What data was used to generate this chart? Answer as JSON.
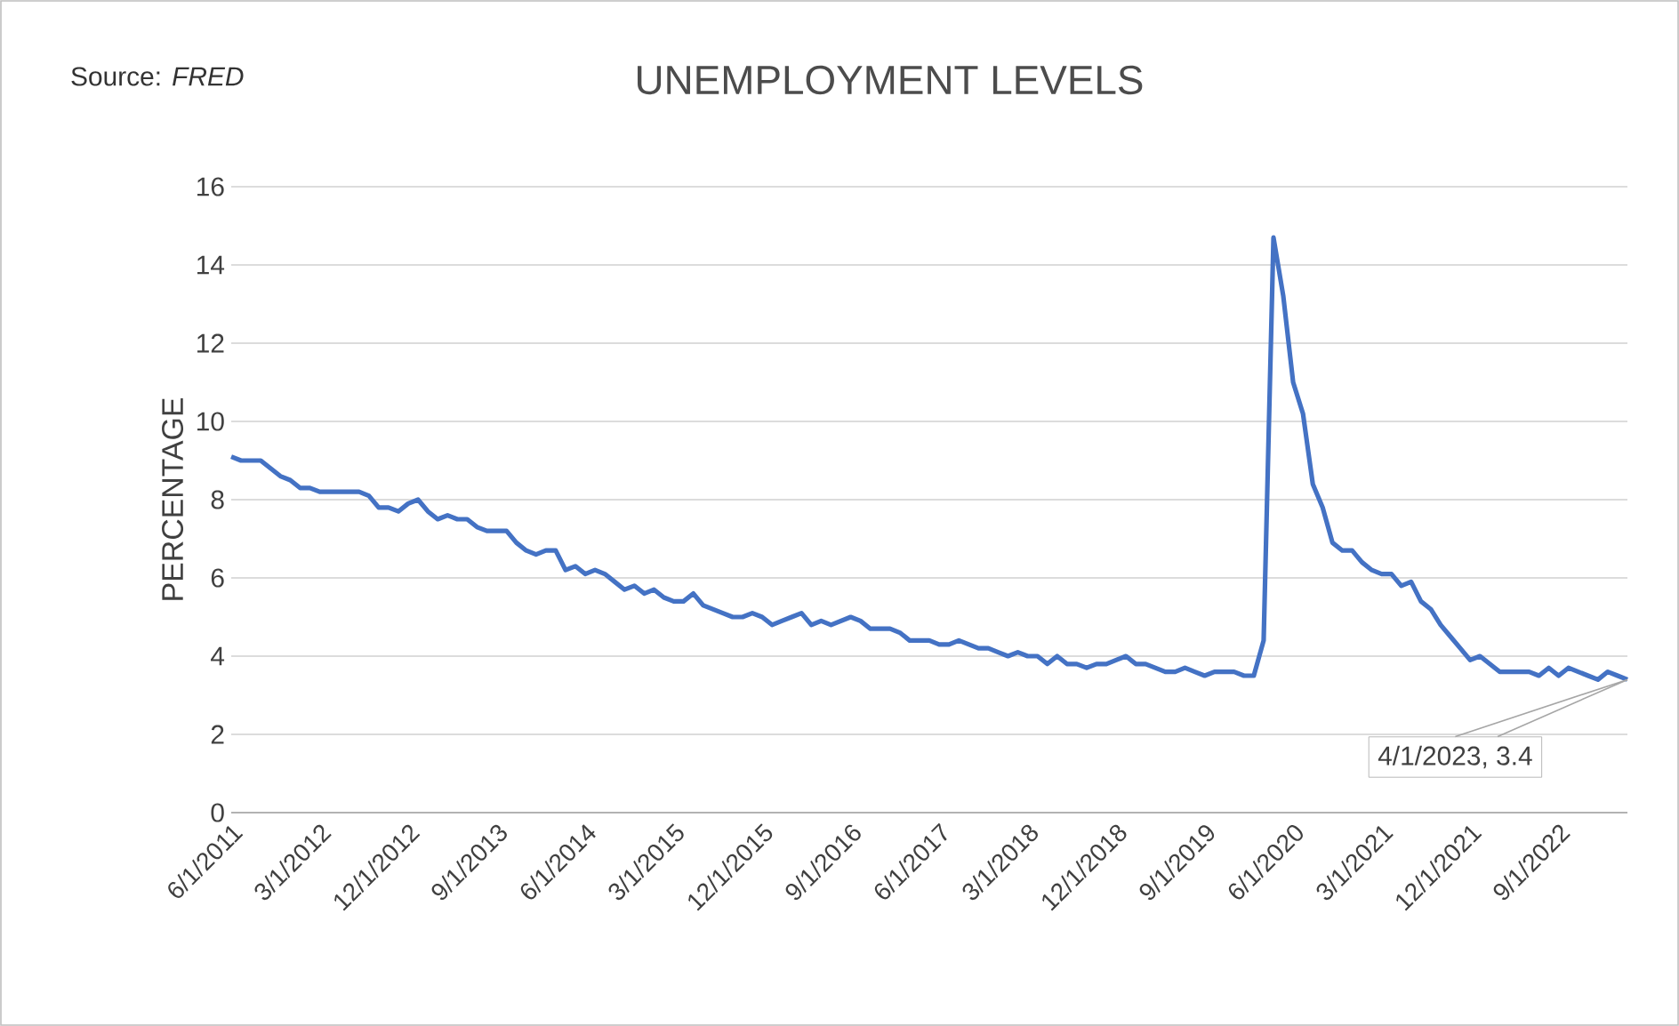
{
  "chart_data": {
    "type": "line",
    "title": "UNEMPLOYMENT LEVELS",
    "ylabel": "PERCENTAGE",
    "annotations": [
      "Source: *FRED*",
      {
        "text": "4/1/2023, 3.4",
        "x": "2023-04",
        "y": 3.4
      }
    ],
    "x": [
      "2011-06",
      "2011-07",
      "2011-08",
      "2011-09",
      "2011-10",
      "2011-11",
      "2011-12",
      "2012-01",
      "2012-02",
      "2012-03",
      "2012-04",
      "2012-05",
      "2012-06",
      "2012-07",
      "2012-08",
      "2012-09",
      "2012-10",
      "2012-11",
      "2012-12",
      "2013-01",
      "2013-02",
      "2013-03",
      "2013-04",
      "2013-05",
      "2013-06",
      "2013-07",
      "2013-08",
      "2013-09",
      "2013-10",
      "2013-11",
      "2013-12",
      "2014-01",
      "2014-02",
      "2014-03",
      "2014-04",
      "2014-05",
      "2014-06",
      "2014-07",
      "2014-08",
      "2014-09",
      "2014-10",
      "2014-11",
      "2014-12",
      "2015-01",
      "2015-02",
      "2015-03",
      "2015-04",
      "2015-05",
      "2015-06",
      "2015-07",
      "2015-08",
      "2015-09",
      "2015-10",
      "2015-11",
      "2015-12",
      "2016-01",
      "2016-02",
      "2016-03",
      "2016-04",
      "2016-05",
      "2016-06",
      "2016-07",
      "2016-08",
      "2016-09",
      "2016-10",
      "2016-11",
      "2016-12",
      "2017-01",
      "2017-02",
      "2017-03",
      "2017-04",
      "2017-05",
      "2017-06",
      "2017-07",
      "2017-08",
      "2017-09",
      "2017-10",
      "2017-11",
      "2017-12",
      "2018-01",
      "2018-02",
      "2018-03",
      "2018-04",
      "2018-05",
      "2018-06",
      "2018-07",
      "2018-08",
      "2018-09",
      "2018-10",
      "2018-11",
      "2018-12",
      "2019-01",
      "2019-02",
      "2019-03",
      "2019-04",
      "2019-05",
      "2019-06",
      "2019-07",
      "2019-08",
      "2019-09",
      "2019-10",
      "2019-11",
      "2019-12",
      "2020-01",
      "2020-02",
      "2020-03",
      "2020-04",
      "2020-05",
      "2020-06",
      "2020-07",
      "2020-08",
      "2020-09",
      "2020-10",
      "2020-11",
      "2020-12",
      "2021-01",
      "2021-02",
      "2021-03",
      "2021-04",
      "2021-05",
      "2021-06",
      "2021-07",
      "2021-08",
      "2021-09",
      "2021-10",
      "2021-11",
      "2021-12",
      "2022-01",
      "2022-02",
      "2022-03",
      "2022-04",
      "2022-05",
      "2022-06",
      "2022-07",
      "2022-08",
      "2022-09",
      "2022-10",
      "2022-11",
      "2022-12",
      "2023-01",
      "2023-02",
      "2023-03",
      "2023-04"
    ],
    "series": [
      {
        "color": "#4472c4",
        "values": [
          9.1,
          9.0,
          9.0,
          9.0,
          8.8,
          8.6,
          8.5,
          8.3,
          8.3,
          8.2,
          8.2,
          8.2,
          8.2,
          8.2,
          8.1,
          7.8,
          7.8,
          7.7,
          7.9,
          8.0,
          7.7,
          7.5,
          7.6,
          7.5,
          7.5,
          7.3,
          7.2,
          7.2,
          7.2,
          6.9,
          6.7,
          6.6,
          6.7,
          6.7,
          6.2,
          6.3,
          6.1,
          6.2,
          6.1,
          5.9,
          5.7,
          5.8,
          5.6,
          5.7,
          5.5,
          5.4,
          5.4,
          5.6,
          5.3,
          5.2,
          5.1,
          5.0,
          5.0,
          5.1,
          5.0,
          4.8,
          4.9,
          5.0,
          5.1,
          4.8,
          4.9,
          4.8,
          4.9,
          5.0,
          4.9,
          4.7,
          4.7,
          4.7,
          4.6,
          4.4,
          4.4,
          4.4,
          4.3,
          4.3,
          4.4,
          4.3,
          4.2,
          4.2,
          4.1,
          4.0,
          4.1,
          4.0,
          4.0,
          3.8,
          4.0,
          3.8,
          3.8,
          3.7,
          3.8,
          3.8,
          3.9,
          4.0,
          3.8,
          3.8,
          3.7,
          3.6,
          3.6,
          3.7,
          3.6,
          3.5,
          3.6,
          3.6,
          3.6,
          3.5,
          3.5,
          4.4,
          14.7,
          13.2,
          11.0,
          10.2,
          8.4,
          7.8,
          6.9,
          6.7,
          6.7,
          6.4,
          6.2,
          6.1,
          6.1,
          5.8,
          5.9,
          5.4,
          5.2,
          4.8,
          4.5,
          4.2,
          3.9,
          4.0,
          3.8,
          3.6,
          3.6,
          3.6,
          3.6,
          3.5,
          3.7,
          3.5,
          3.7,
          3.6,
          3.5,
          3.4,
          3.6,
          3.5,
          3.4
        ]
      }
    ],
    "xlim": [
      "2011-06",
      "2023-04"
    ],
    "xticks": [
      {
        "value": "2011-06",
        "label": "6/1/2011"
      },
      {
        "value": "2012-03",
        "label": "3/1/2012"
      },
      {
        "value": "2012-12",
        "label": "12/1/2012"
      },
      {
        "value": "2013-09",
        "label": "9/1/2013"
      },
      {
        "value": "2014-06",
        "label": "6/1/2014"
      },
      {
        "value": "2015-03",
        "label": "3/1/2015"
      },
      {
        "value": "2015-12",
        "label": "12/1/2015"
      },
      {
        "value": "2016-09",
        "label": "9/1/2016"
      },
      {
        "value": "2017-06",
        "label": "6/1/2017"
      },
      {
        "value": "2018-03",
        "label": "3/1/2018"
      },
      {
        "value": "2018-12",
        "label": "12/1/2018"
      },
      {
        "value": "2019-09",
        "label": "9/1/2019"
      },
      {
        "value": "2020-06",
        "label": "6/1/2020"
      },
      {
        "value": "2021-03",
        "label": "3/1/2021"
      },
      {
        "value": "2021-12",
        "label": "12/1/2021"
      },
      {
        "value": "2022-09",
        "label": "9/1/2022"
      }
    ],
    "ylim": [
      0,
      16
    ],
    "yticks": [
      0,
      2,
      4,
      6,
      8,
      10,
      12,
      14,
      16
    ],
    "grid": "y",
    "marker": "none",
    "line_style": "solid"
  }
}
